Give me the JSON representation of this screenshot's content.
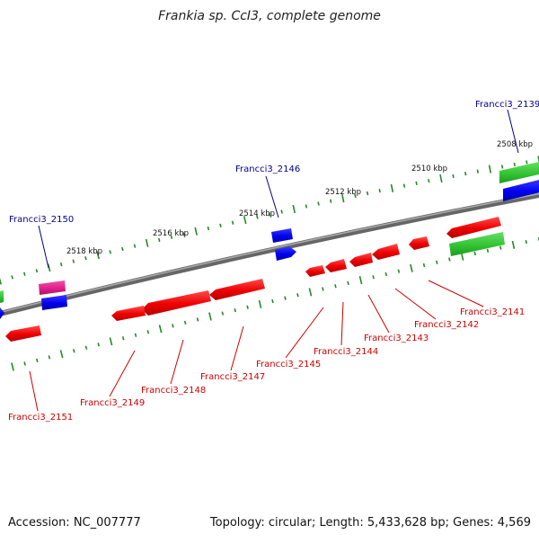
{
  "title": "Frankia sp. CcI3, complete genome",
  "accession": "Accession: NC_007777",
  "summary": "Topology: circular; Length: 5,433,628 bp; Genes: 4,569",
  "colors": {
    "backbone": "#808080",
    "cds": "#ff0000",
    "blue_feature": "#0000ff",
    "green_feature": "#33cc33",
    "magenta_feature": "#e0208a",
    "tick": "#228b22",
    "label_top": "#00008b",
    "label_bottom": "#cc0000"
  },
  "scale_labels": [
    "2508 kbp",
    "2510 kbp",
    "2512 kbp",
    "2514 kbp",
    "2516 kbp",
    "2518 kbp"
  ],
  "top_gene_labels": [
    "Francci3_2139",
    "Francci3_2146",
    "Francci3_2150"
  ],
  "bottom_gene_labels": [
    "Francci3_2141",
    "Francci3_2142",
    "Francci3_2143",
    "Francci3_2144",
    "Francci3_2145",
    "Francci3_2147",
    "Francci3_2148",
    "Francci3_2149",
    "Francci3_2151"
  ]
}
